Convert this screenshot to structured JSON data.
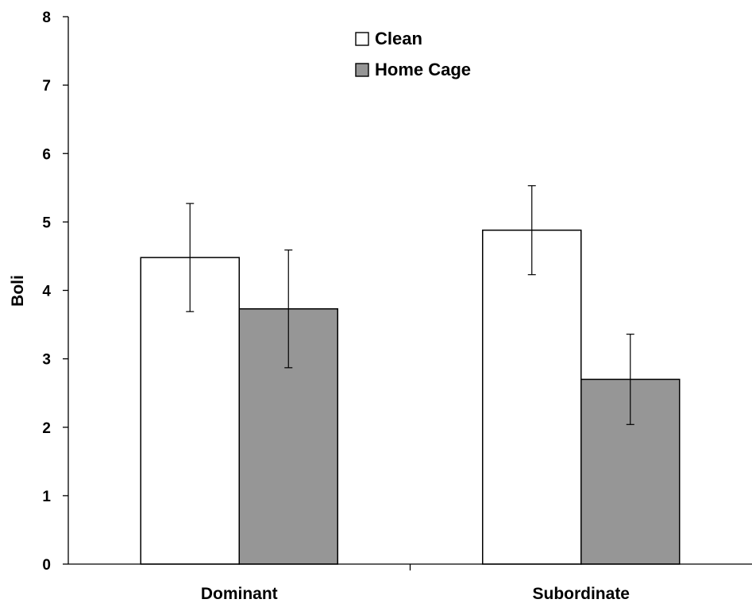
{
  "chart_data": {
    "type": "bar",
    "title": "",
    "xlabel": "",
    "ylabel": "Boli",
    "ylim": [
      0,
      8
    ],
    "yticks": [
      "0",
      "1",
      "2",
      "3",
      "4",
      "5",
      "6",
      "7",
      "8"
    ],
    "categories": [
      "Dominant",
      "Subordinate"
    ],
    "series": [
      {
        "name": "Clean",
        "color": "#ffffff",
        "values": [
          4.48,
          4.88
        ],
        "error": [
          0.79,
          0.65
        ]
      },
      {
        "name": "Home Cage",
        "color": "#969696",
        "values": [
          3.73,
          2.7
        ],
        "error": [
          0.86,
          0.66
        ]
      }
    ],
    "legend_position": "top-center",
    "grid": false
  }
}
